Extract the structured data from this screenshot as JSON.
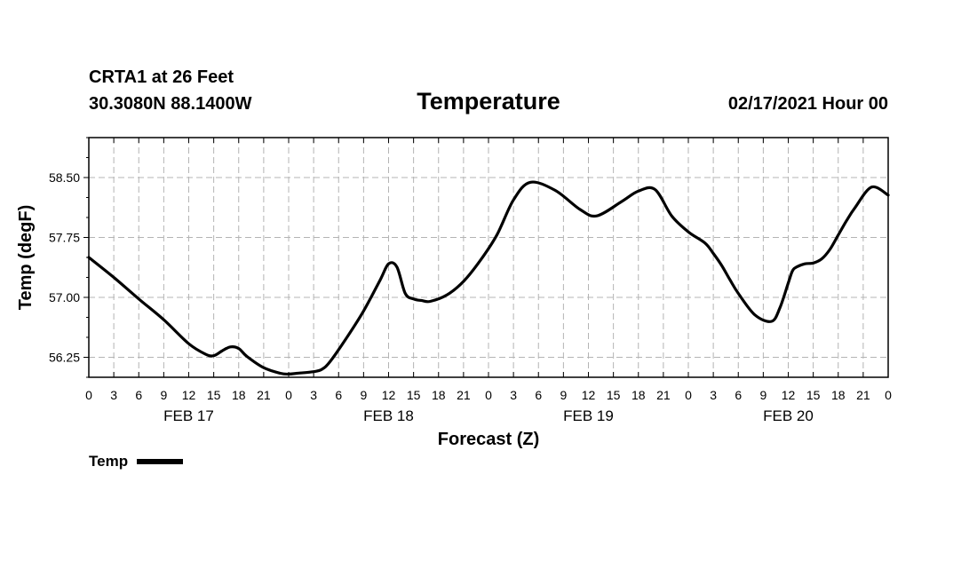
{
  "header": {
    "station": "CRTA1 at 26 Feet",
    "coords": "30.3080N 88.1400W",
    "title": "Temperature",
    "datetime": "02/17/2021 Hour 00"
  },
  "legend": {
    "label": "Temp"
  },
  "colors": {
    "line": "#000000",
    "grid": "#b4b4b4",
    "frame": "#000000"
  },
  "chart_data": {
    "type": "line",
    "title": "Temperature",
    "xlabel": "Forecast (Z)",
    "ylabel": "Temp (degF)",
    "xlim": [
      0,
      96
    ],
    "ylim": [
      56.0,
      59.0
    ],
    "yticks": [
      56.25,
      57.0,
      57.75,
      58.5
    ],
    "ytick_labels": [
      "56.25",
      "57.00",
      "57.75",
      "58.50"
    ],
    "xtick_step_hours": 3,
    "xtick_labels": [
      "0",
      "3",
      "6",
      "9",
      "12",
      "15",
      "18",
      "21",
      "0",
      "3",
      "6",
      "9",
      "12",
      "15",
      "18",
      "21",
      "0",
      "3",
      "6",
      "9",
      "12",
      "15",
      "18",
      "21",
      "0",
      "3",
      "6",
      "9",
      "12",
      "15",
      "18",
      "21",
      "0"
    ],
    "date_labels": [
      {
        "label": "FEB 17",
        "hour": 12
      },
      {
        "label": "FEB 18",
        "hour": 36
      },
      {
        "label": "FEB 19",
        "hour": 60
      },
      {
        "label": "FEB 20",
        "hour": 84
      }
    ],
    "series": [
      {
        "name": "Temp",
        "x": [
          0,
          3,
          6,
          9,
          12,
          14,
          15,
          16,
          17,
          18,
          19,
          21,
          23,
          24,
          25,
          27,
          28,
          29,
          31,
          33,
          35,
          36,
          37,
          38,
          39,
          40,
          41,
          43,
          45,
          47,
          49,
          51,
          53,
          56,
          59,
          61,
          64,
          66,
          68,
          70,
          72,
          74,
          75,
          76,
          77,
          78,
          80,
          82,
          83,
          84,
          84.5,
          85,
          86,
          87,
          88,
          89,
          90,
          91,
          92,
          94,
          96
        ],
        "y": [
          57.5,
          57.25,
          56.98,
          56.72,
          56.42,
          56.29,
          56.27,
          56.33,
          56.38,
          56.36,
          56.26,
          56.12,
          56.05,
          56.04,
          56.05,
          56.07,
          56.1,
          56.2,
          56.5,
          56.83,
          57.22,
          57.42,
          57.38,
          57.05,
          56.98,
          56.96,
          56.95,
          57.03,
          57.2,
          57.46,
          57.78,
          58.22,
          58.44,
          58.34,
          58.1,
          58.02,
          58.2,
          58.33,
          58.35,
          58.02,
          57.82,
          57.68,
          57.55,
          57.4,
          57.22,
          57.05,
          56.78,
          56.7,
          56.87,
          57.18,
          57.33,
          57.38,
          57.42,
          57.43,
          57.48,
          57.6,
          57.78,
          57.96,
          58.12,
          58.38,
          58.28
        ]
      }
    ]
  }
}
